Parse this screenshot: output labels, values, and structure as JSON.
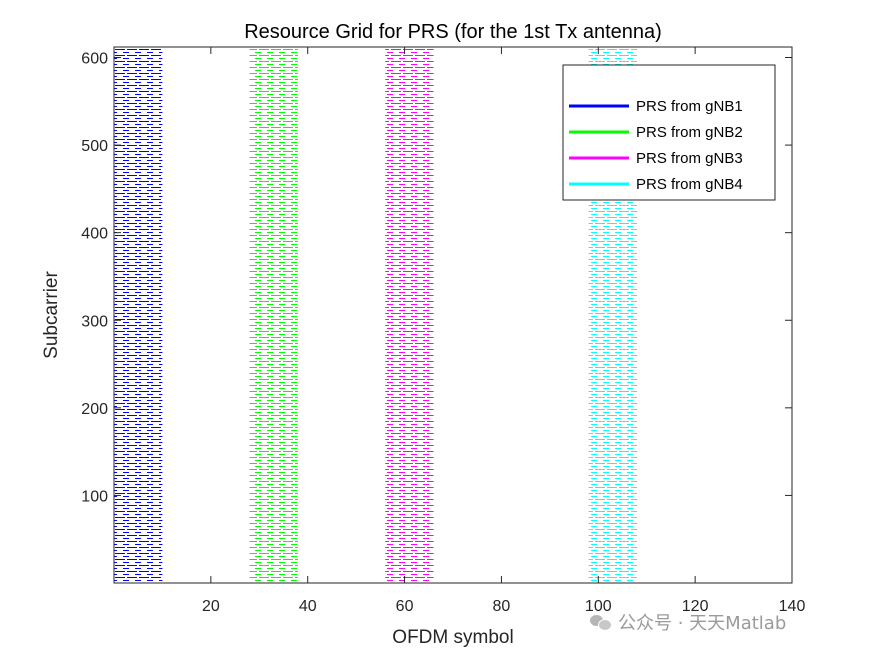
{
  "chart_data": {
    "type": "heatmap",
    "title": "Resource Grid for PRS (for the 1st Tx antenna)",
    "xlabel": "OFDM symbol",
    "ylabel": "Subcarrier",
    "xlim": [
      0,
      140
    ],
    "ylim": [
      0,
      612
    ],
    "xticks": [
      20,
      40,
      60,
      80,
      100,
      120,
      140
    ],
    "yticks": [
      100,
      200,
      300,
      400,
      500,
      600
    ],
    "grid": false,
    "legend_position": "top-right",
    "series": [
      {
        "name": "PRS from gNB1",
        "color": "#0000ff",
        "symbol_range": [
          0,
          10
        ],
        "subcarrier_range": [
          0,
          612
        ]
      },
      {
        "name": "PRS from gNB2",
        "color": "#00ff00",
        "symbol_range": [
          28,
          38
        ],
        "subcarrier_range": [
          0,
          612
        ]
      },
      {
        "name": "PRS from gNB3",
        "color": "#ff00ff",
        "symbol_range": [
          56,
          66
        ],
        "subcarrier_range": [
          0,
          612
        ]
      },
      {
        "name": "PRS from gNB4",
        "color": "#00ffff",
        "symbol_range": [
          98,
          108
        ],
        "subcarrier_range": [
          0,
          612
        ]
      }
    ]
  },
  "watermark": {
    "text": "公众号 · 天天Matlab"
  }
}
